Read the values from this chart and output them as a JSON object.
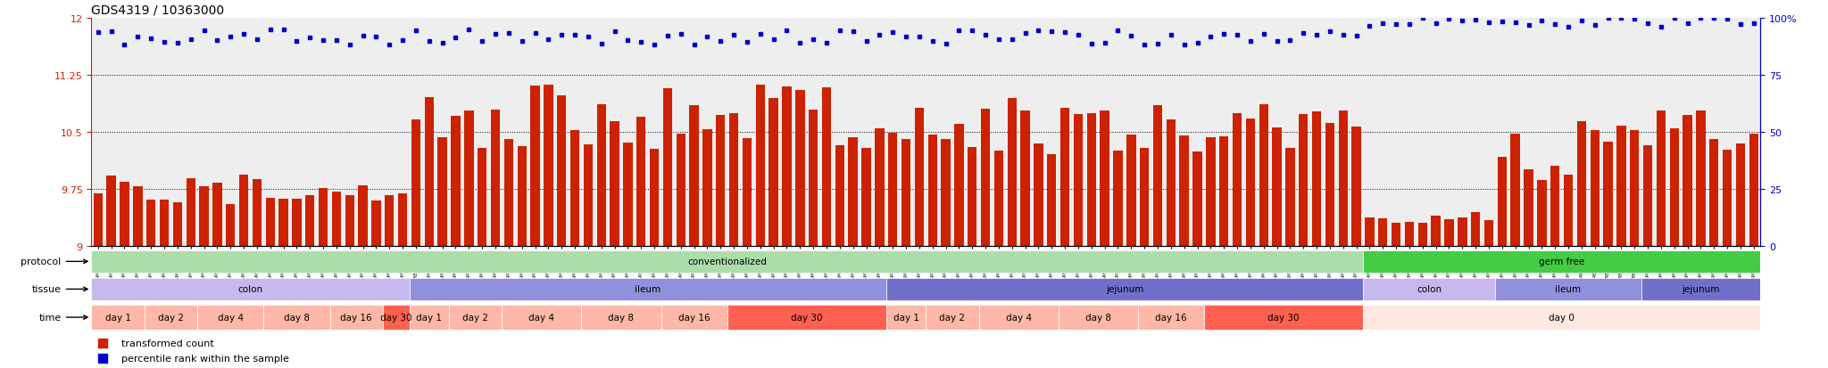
{
  "title": "GDS4319 / 10363000",
  "bar_color": "#cc2200",
  "dot_color": "#0000cc",
  "left_axis_color": "#cc2200",
  "right_axis_color": "#0000cc",
  "yticks_left": [
    9.0,
    9.75,
    10.5,
    11.25,
    12.0
  ],
  "yticklabels_left": [
    "9",
    "9.75",
    "10.5",
    "11.25",
    "12"
  ],
  "yticks_right": [
    0,
    25,
    50,
    75,
    100
  ],
  "yticklabels_right": [
    "0",
    "25",
    "50",
    "75",
    "100%"
  ],
  "ylim_left": [
    9.0,
    12.0
  ],
  "ylim_right": [
    0,
    100
  ],
  "protocol_label": "protocol",
  "tissue_label": "tissue",
  "time_label": "time",
  "legend_red": "transformed count",
  "legend_blue": "percentile rank within the sample",
  "prot_conv_color": "#aaddaa",
  "prot_gf_color": "#44cc44",
  "tiss_colon_color": "#c8b8ee",
  "tiss_ileum_color": "#9090dd",
  "tiss_jej_color": "#7070cc",
  "time_light_color": "#ffb8a8",
  "time_dark_color": "#ff6050",
  "time_gf_color": "#ffe8e0",
  "n_conv_colon": 24,
  "n_conv_ileum": 36,
  "n_conv_jej": 36,
  "n_gf_colon": 10,
  "n_gf_ileum": 11,
  "n_gf_jej": 9,
  "colon_time_spans": [
    [
      0,
      4,
      "day 1"
    ],
    [
      4,
      8,
      "day 2"
    ],
    [
      8,
      13,
      "day 4"
    ],
    [
      13,
      18,
      "day 8"
    ],
    [
      18,
      22,
      "day 16"
    ],
    [
      22,
      24,
      "day 30"
    ]
  ],
  "ileum_time_spans": [
    [
      0,
      3,
      "day 1"
    ],
    [
      3,
      7,
      "day 2"
    ],
    [
      7,
      13,
      "day 4"
    ],
    [
      13,
      19,
      "day 8"
    ],
    [
      19,
      24,
      "day 16"
    ],
    [
      24,
      36,
      "day 30"
    ]
  ],
  "jej_time_spans": [
    [
      0,
      3,
      "day 1"
    ],
    [
      3,
      7,
      "day 2"
    ],
    [
      7,
      13,
      "day 4"
    ],
    [
      13,
      19,
      "day 8"
    ],
    [
      19,
      24,
      "day 16"
    ],
    [
      24,
      36,
      "day 30"
    ]
  ]
}
